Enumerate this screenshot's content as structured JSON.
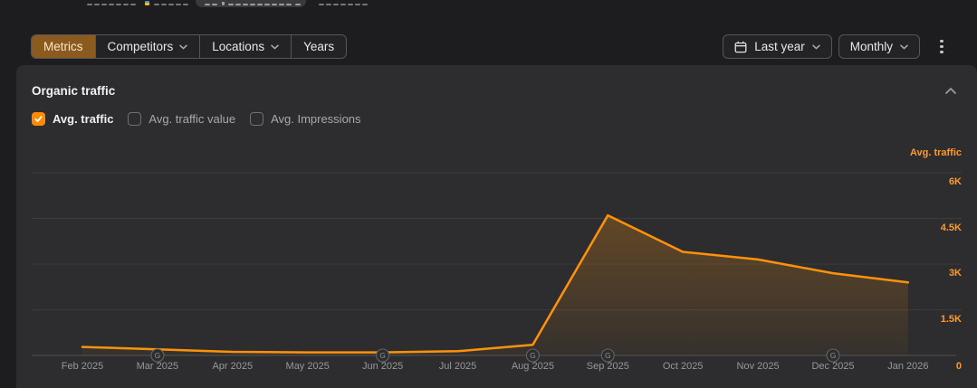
{
  "colors": {
    "accent": "#ff8800",
    "line": "#ff920a",
    "axis_labels": "#ff982d",
    "selected_segment_bg": "#8a5a1e",
    "selected_segment_text": "#ffe7c8",
    "card_bg": "#2d2d2f",
    "page_bg": "#1d1d1f"
  },
  "toolbar": {
    "segments": [
      {
        "label": "Metrics",
        "selected": true,
        "dropdown": false
      },
      {
        "label": "Competitors",
        "selected": false,
        "dropdown": true
      },
      {
        "label": "Locations",
        "selected": false,
        "dropdown": true
      },
      {
        "label": "Years",
        "selected": false,
        "dropdown": false
      }
    ],
    "date_range_label": "Last year",
    "granularity_label": "Monthly"
  },
  "panel": {
    "title": "Organic traffic",
    "toggles": [
      {
        "label": "Avg. traffic",
        "checked": true
      },
      {
        "label": "Avg. traffic value",
        "checked": false
      },
      {
        "label": "Avg. Impressions",
        "checked": false
      }
    ]
  },
  "chart_data": {
    "type": "area",
    "title": "Organic traffic",
    "series": [
      {
        "name": "Avg. traffic",
        "values": [
          280,
          200,
          120,
          100,
          100,
          140,
          350,
          4600,
          3400,
          3150,
          2700,
          2400
        ]
      }
    ],
    "categories": [
      "Feb 2025",
      "Mar 2025",
      "Apr 2025",
      "May 2025",
      "Jun 2025",
      "Jul 2025",
      "Aug 2025",
      "Sep 2025",
      "Oct 2025",
      "Nov 2025",
      "Dec 2025",
      "Jan 2026"
    ],
    "ylabel": "Avg. traffic",
    "ylim": [
      0,
      6000
    ],
    "y_ticks": [
      {
        "value": 0,
        "label": "0"
      },
      {
        "value": 1500,
        "label": "1.5K"
      },
      {
        "value": 3000,
        "label": "3K"
      },
      {
        "value": 4500,
        "label": "4.5K"
      },
      {
        "value": 6000,
        "label": "6K"
      }
    ],
    "grid": true,
    "legend_position": "right-axis-top",
    "google_update_markers": [
      "Mar 2025",
      "Jun 2025",
      "Aug 2025",
      "Sep 2025",
      "Dec 2025"
    ],
    "marker_glyph": "G"
  }
}
